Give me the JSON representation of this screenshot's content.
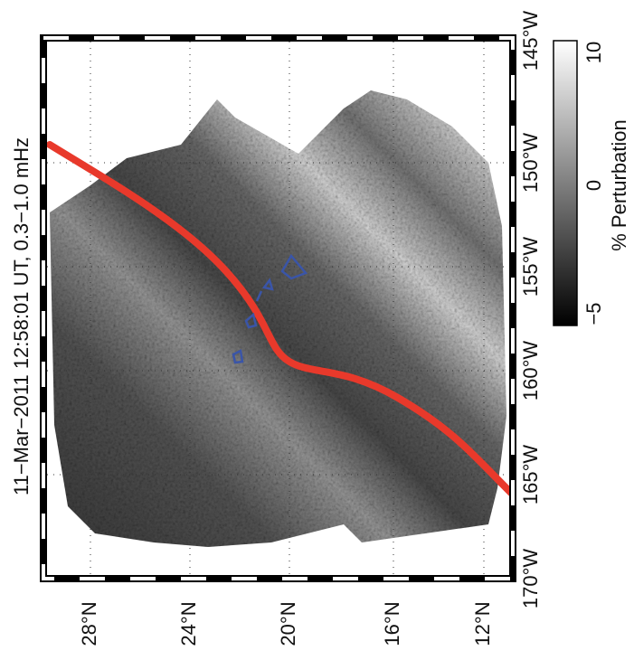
{
  "title": "11−Mar−2011 12:58:01 UT, 0.3−1.0 mHz",
  "longitude_labels": [
    "145°W",
    "150°W",
    "155°W",
    "160°W",
    "165°W",
    "170°W"
  ],
  "latitude_labels": [
    "28°N",
    "24°N",
    "20°N",
    "16°N",
    "12°N"
  ],
  "colorbar": {
    "label": "% Perturbation",
    "ticks": [
      "10",
      "0",
      "−5"
    ]
  }
}
